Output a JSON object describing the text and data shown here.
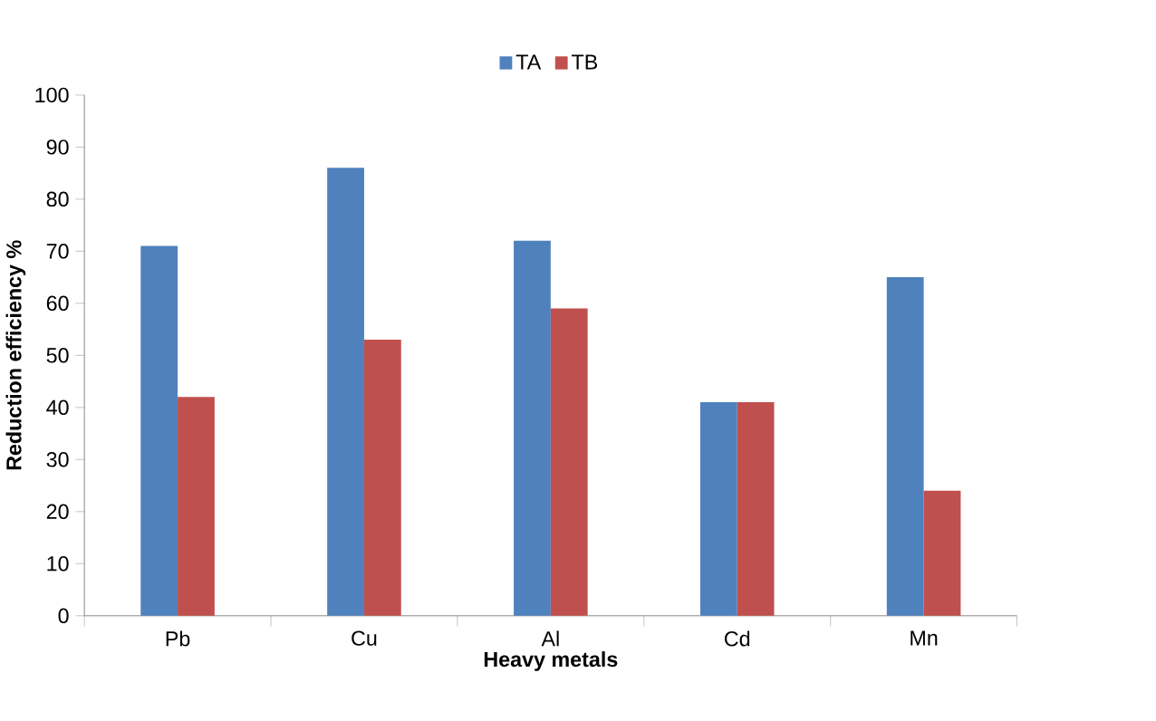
{
  "chart_data": {
    "type": "bar",
    "xlabel": "Heavy metals",
    "ylabel": "Reduction efficiency %",
    "categories": [
      "Pb",
      "Cu",
      "Al",
      "Cd",
      "Mn"
    ],
    "series": [
      {
        "name": "TA",
        "color": "#4f81bd",
        "values": [
          71,
          86,
          72,
          41,
          65
        ]
      },
      {
        "name": "TB",
        "color": "#c0504d",
        "values": [
          42,
          53,
          59,
          41,
          24
        ]
      }
    ],
    "ylim": [
      0,
      100
    ],
    "yticks": [
      0,
      10,
      20,
      30,
      40,
      50,
      60,
      70,
      80,
      90,
      100
    ],
    "grid": false,
    "legend": "top"
  }
}
